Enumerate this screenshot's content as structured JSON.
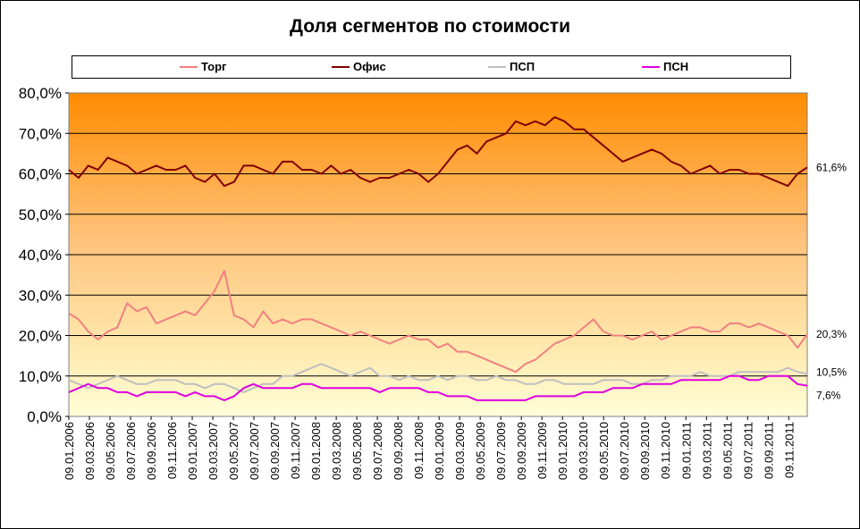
{
  "chart_data": {
    "type": "line",
    "title": "Доля сегментов по стоимости",
    "ylim": [
      0,
      80
    ],
    "ytick_labels": [
      "0,0%",
      "10,0%",
      "20,0%",
      "30,0%",
      "40,0%",
      "50,0%",
      "60,0%",
      "70,0%",
      "80,0%"
    ],
    "xtick_labels": [
      "09.01.2006",
      "09.03.2006",
      "09.05.2006",
      "09.07.2006",
      "09.09.2006",
      "09.11.2006",
      "09.01.2007",
      "09.03.2007",
      "09.05.2007",
      "09.07.2007",
      "09.09.2007",
      "09.11.2007",
      "09.01.2008",
      "09.03.2008",
      "09.05.2008",
      "09.07.2008",
      "09.09.2008",
      "09.11.2008",
      "09.01.2009",
      "09.03.2009",
      "09.05.2009",
      "09.07.2009",
      "09.09.2009",
      "09.11.2009",
      "09.01.2010",
      "09.03.2010",
      "09.05.2010",
      "09.07.2010",
      "09.09.2010",
      "09.11.2010",
      "09.01.2011",
      "09.03.2011",
      "09.05.2011",
      "09.07.2011",
      "09.09.2011",
      "09.11.2011"
    ],
    "x_start": "09.01.2006",
    "x_end": "09.12.2011",
    "legend_position": "top",
    "grid": true,
    "background": "vertical gradient orange to pale yellow",
    "series": [
      {
        "name": "Торг",
        "color": "#f08080",
        "values": [
          25.5,
          24,
          21,
          19,
          21,
          22,
          28,
          26,
          27,
          23,
          24,
          25,
          26,
          25,
          28,
          31,
          36,
          25,
          24,
          22,
          26,
          23,
          24,
          23,
          24,
          24,
          23,
          22,
          21,
          20,
          21,
          20,
          19,
          18,
          19,
          20,
          19,
          19,
          17,
          18,
          16,
          16,
          15,
          14,
          13,
          12,
          11,
          13,
          14,
          16,
          18,
          19,
          20,
          22,
          24,
          21,
          20,
          20,
          19,
          20,
          21,
          19,
          20,
          21,
          22,
          22,
          21,
          21,
          23,
          23,
          22,
          23,
          22,
          21,
          20,
          17,
          20.3
        ],
        "end_label": "20,3%"
      },
      {
        "name": "Офис",
        "color": "#800000",
        "values": [
          61,
          59,
          62,
          61,
          64,
          63,
          62,
          60,
          61,
          62,
          61,
          61,
          62,
          59,
          58,
          60,
          57,
          58,
          62,
          62,
          61,
          60,
          63,
          63,
          61,
          61,
          60,
          62,
          60,
          61,
          59,
          58,
          59,
          59,
          60,
          61,
          60,
          58,
          60,
          63,
          66,
          67,
          65,
          68,
          69,
          70,
          73,
          72,
          73,
          72,
          74,
          73,
          71,
          71,
          69,
          67,
          65,
          63,
          64,
          65,
          66,
          65,
          63,
          62,
          60,
          61,
          62,
          60,
          61,
          61,
          60,
          60,
          59,
          58,
          57,
          60,
          61.6
        ],
        "end_label": "61,6%"
      },
      {
        "name": "ПСП",
        "color": "#bfbfbf",
        "values": [
          9,
          8,
          7,
          8,
          9,
          10,
          9,
          8,
          8,
          9,
          9,
          9,
          8,
          8,
          7,
          8,
          8,
          7,
          6,
          7,
          8,
          8,
          10,
          10,
          11,
          12,
          13,
          12,
          11,
          10,
          11,
          12,
          10,
          10,
          9,
          10,
          9,
          9,
          10,
          9,
          10,
          10,
          9,
          9,
          10,
          9,
          9,
          8,
          8,
          9,
          9,
          8,
          8,
          8,
          8,
          9,
          9,
          9,
          8,
          8,
          9,
          9,
          10,
          10,
          10,
          11,
          10,
          10,
          10,
          11,
          11,
          11,
          11,
          11,
          12,
          11,
          10.5
        ],
        "end_label": "10,5%"
      },
      {
        "name": "ПСН",
        "color": "#e000e0",
        "values": [
          6,
          7,
          8,
          7,
          7,
          6,
          6,
          5,
          6,
          6,
          6,
          6,
          5,
          6,
          5,
          5,
          4,
          5,
          7,
          8,
          7,
          7,
          7,
          7,
          8,
          8,
          7,
          7,
          7,
          7,
          7,
          7,
          6,
          7,
          7,
          7,
          7,
          6,
          6,
          5,
          5,
          5,
          4,
          4,
          4,
          4,
          4,
          4,
          5,
          5,
          5,
          5,
          5,
          6,
          6,
          6,
          7,
          7,
          7,
          8,
          8,
          8,
          8,
          9,
          9,
          9,
          9,
          9,
          10,
          10,
          9,
          9,
          10,
          10,
          10,
          8,
          7.6
        ],
        "end_label": "7,6%"
      }
    ]
  }
}
